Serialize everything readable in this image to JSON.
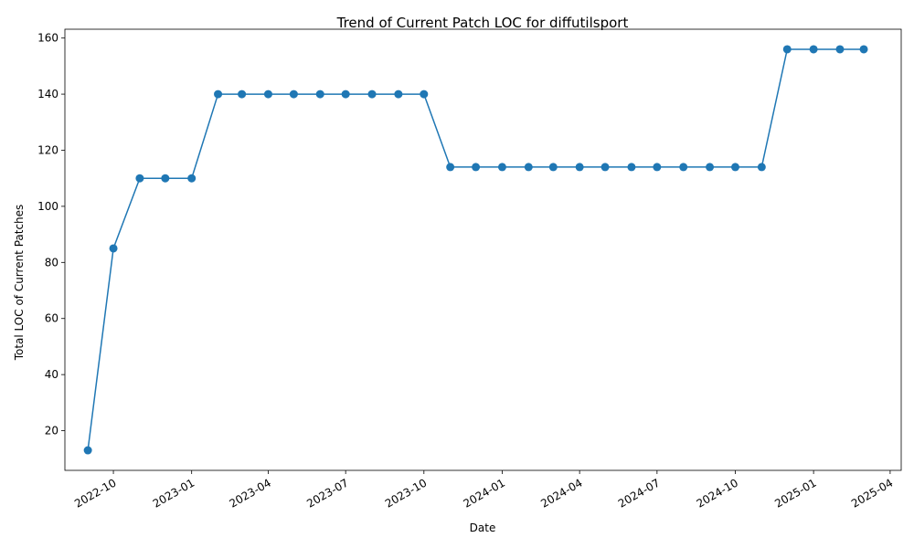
{
  "chart_data": {
    "type": "line",
    "title": "Trend of Current Patch LOC for diffutilsport",
    "xlabel": "Date",
    "ylabel": "Total LOC of Current Patches",
    "color": "#1f77b4",
    "marker": "circle",
    "grid": false,
    "xlim": [
      "2022-08-05",
      "2025-04-14"
    ],
    "ylim": [
      5.85,
      163.15
    ],
    "x_ticks": [
      "2022-10",
      "2023-01",
      "2023-04",
      "2023-07",
      "2023-10",
      "2024-01",
      "2024-04",
      "2024-07",
      "2024-10",
      "2025-01",
      "2025-04"
    ],
    "y_ticks": [
      20,
      40,
      60,
      80,
      100,
      120,
      140,
      160
    ],
    "series": [
      {
        "x": [
          "2022-09-01",
          "2022-10-01",
          "2022-11-01",
          "2022-12-01",
          "2023-01-01",
          "2023-02-01",
          "2023-03-01",
          "2023-04-01",
          "2023-05-01",
          "2023-06-01",
          "2023-07-01",
          "2023-08-01",
          "2023-09-01",
          "2023-10-01",
          "2023-11-01",
          "2023-12-01",
          "2024-01-01",
          "2024-02-01",
          "2024-03-01",
          "2024-04-01",
          "2024-05-01",
          "2024-06-01",
          "2024-07-01",
          "2024-08-01",
          "2024-09-01",
          "2024-10-01",
          "2024-11-01",
          "2024-12-01",
          "2025-01-01",
          "2025-02-01",
          "2025-03-01"
        ],
        "y": [
          13,
          85,
          110,
          110,
          110,
          140,
          140,
          140,
          140,
          140,
          140,
          140,
          140,
          140,
          114,
          114,
          114,
          114,
          114,
          114,
          114,
          114,
          114,
          114,
          114,
          114,
          114,
          156,
          156,
          156,
          156
        ]
      }
    ]
  }
}
